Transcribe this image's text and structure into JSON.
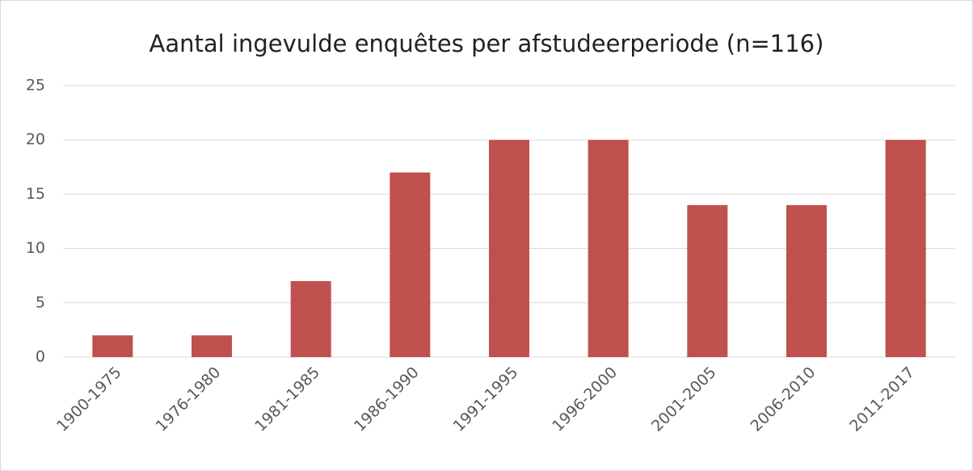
{
  "chart_data": {
    "type": "bar",
    "title": "Aantal ingevulde enquêtes per afstudeerperiode (n=116)",
    "categories": [
      "1900-1975",
      "1976-1980",
      "1981-1985",
      "1986-1990",
      "1991-1995",
      "1996-2000",
      "2001-2005",
      "2006-2010",
      "2011-2017"
    ],
    "values": [
      2,
      2,
      7,
      17,
      20,
      20,
      14,
      14,
      20
    ],
    "color": "#c0504d",
    "ylim": [
      0,
      25
    ],
    "yticks": [
      0,
      5,
      10,
      15,
      20,
      25
    ],
    "grid": true
  }
}
